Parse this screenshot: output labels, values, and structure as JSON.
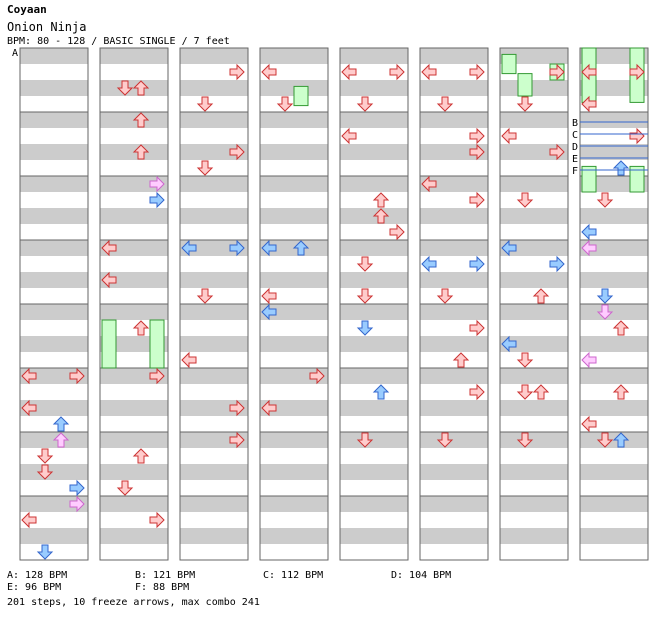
{
  "header": {
    "author": "Coyaan",
    "song_title": "Onion Ninja",
    "info": "BPM: 80 - 128 / BASIC SINGLE / 7 feet"
  },
  "markers": [
    "A",
    "B",
    "C",
    "D",
    "E",
    "F"
  ],
  "bpm_legend": [
    "A: 128 BPM",
    "B: 121 BPM",
    "C: 112 BPM",
    "D: 104 BPM",
    "E: 96 BPM",
    "F: 88 BPM"
  ],
  "summary": "201 steps, 10 freeze arrows, max combo 241",
  "colors": {
    "stripe_gray": "#cccccc",
    "stripe_white": "#ffffff",
    "red_arrow": "#ffcccc",
    "red_stroke": "#cc3333",
    "blue_arrow": "#99ccff",
    "blue_stroke": "#3366cc",
    "pink_arrow": "#ffccff",
    "green_arrow": "#66dd66",
    "freeze_fill": "#ccffcc",
    "freeze_stroke": "#339933"
  },
  "chart_data": {
    "type": "step_chart",
    "columns": 8,
    "lanes": [
      "left",
      "down",
      "up",
      "right"
    ],
    "notes": [
      {
        "col": 1,
        "lane": "down",
        "beat": 0.5,
        "c": "red"
      },
      {
        "col": 1,
        "lane": "up",
        "beat": 0.5,
        "c": "red"
      },
      {
        "col": 1,
        "lane": "up",
        "beat": 1.0,
        "c": "red"
      },
      {
        "col": 1,
        "lane": "up",
        "beat": 1.5,
        "c": "red"
      },
      {
        "col": 1,
        "lane": "right",
        "beat": 2.0,
        "c": "pink"
      },
      {
        "col": 1,
        "lane": "right",
        "beat": 2.25,
        "c": "blue"
      },
      {
        "col": 1,
        "lane": "left",
        "beat": 3.0,
        "c": "red"
      },
      {
        "col": 1,
        "lane": "left",
        "beat": 3.5,
        "c": "red"
      },
      {
        "col": 1,
        "lane": "up",
        "beat": 4.25,
        "c": "red"
      },
      {
        "col": 1,
        "lane": "right",
        "beat": 5.0,
        "c": "red"
      },
      {
        "col": 1,
        "lane": "up",
        "beat": 6.25,
        "c": "red"
      },
      {
        "col": 1,
        "lane": "down",
        "beat": 6.75,
        "c": "red"
      },
      {
        "col": 1,
        "lane": "right",
        "beat": 7.25,
        "c": "red"
      },
      {
        "col": 1,
        "lane": "left",
        "beat": 8.25,
        "c": "red"
      },
      {
        "col": 1,
        "lane": "down",
        "beat": 8.75,
        "c": "red"
      },
      {
        "col": 1,
        "lane": "up",
        "beat": 9.25,
        "c": "blue"
      },
      {
        "col": 1,
        "lane": "down",
        "beat": 9.0,
        "c": "red"
      },
      {
        "col": 2,
        "lane": "right",
        "beat": 0.25,
        "c": "red"
      },
      {
        "col": 2,
        "lane": "down",
        "beat": 0.75,
        "c": "red"
      },
      {
        "col": 2,
        "lane": "down",
        "beat": 1.75,
        "c": "red"
      },
      {
        "col": 2,
        "lane": "right",
        "beat": 1.5,
        "c": "red"
      },
      {
        "col": 2,
        "lane": "left",
        "beat": 3.0,
        "c": "blue"
      },
      {
        "col": 2,
        "lane": "right",
        "beat": 3.0,
        "c": "blue"
      },
      {
        "col": 2,
        "lane": "down",
        "beat": 3.75,
        "c": "red"
      },
      {
        "col": 2,
        "lane": "left",
        "beat": 4.75,
        "c": "red"
      },
      {
        "col": 2,
        "lane": "right",
        "beat": 5.5,
        "c": "red"
      },
      {
        "col": 2,
        "lane": "right",
        "beat": 6.0,
        "c": "red"
      },
      {
        "col": 3,
        "lane": "left",
        "beat": 0.25,
        "c": "red"
      },
      {
        "col": 3,
        "lane": "down",
        "beat": 0.75,
        "c": "red"
      },
      {
        "col": 3,
        "lane": "left",
        "beat": 3.0,
        "c": "blue"
      },
      {
        "col": 3,
        "lane": "up",
        "beat": 3.0,
        "c": "blue"
      },
      {
        "col": 3,
        "lane": "left",
        "beat": 3.75,
        "c": "red"
      },
      {
        "col": 3,
        "lane": "left",
        "beat": 4.0,
        "c": "blue"
      },
      {
        "col": 3,
        "lane": "right",
        "beat": 5.0,
        "c": "red"
      },
      {
        "col": 3,
        "lane": "left",
        "beat": 5.5,
        "c": "red"
      },
      {
        "col": 4,
        "lane": "left",
        "beat": 0.25,
        "c": "red"
      },
      {
        "col": 4,
        "lane": "right",
        "beat": 0.25,
        "c": "red"
      },
      {
        "col": 4,
        "lane": "down",
        "beat": 0.75,
        "c": "red"
      },
      {
        "col": 4,
        "lane": "left",
        "beat": 1.25,
        "c": "red"
      },
      {
        "col": 4,
        "lane": "up",
        "beat": 2.25,
        "c": "red"
      },
      {
        "col": 4,
        "lane": "up",
        "beat": 2.5,
        "c": "red"
      },
      {
        "col": 4,
        "lane": "right",
        "beat": 2.75,
        "c": "red"
      },
      {
        "col": 4,
        "lane": "down",
        "beat": 3.25,
        "c": "red"
      },
      {
        "col": 4,
        "lane": "down",
        "beat": 3.75,
        "c": "red"
      },
      {
        "col": 4,
        "lane": "down",
        "beat": 4.25,
        "c": "blue"
      },
      {
        "col": 4,
        "lane": "up",
        "beat": 5.25,
        "c": "blue"
      },
      {
        "col": 4,
        "lane": "down",
        "beat": 6.0,
        "c": "red"
      },
      {
        "col": 5,
        "lane": "left",
        "beat": 0.25,
        "c": "red"
      },
      {
        "col": 5,
        "lane": "right",
        "beat": 0.25,
        "c": "red"
      },
      {
        "col": 5,
        "lane": "down",
        "beat": 0.75,
        "c": "red"
      },
      {
        "col": 5,
        "lane": "right",
        "beat": 1.25,
        "c": "red"
      },
      {
        "col": 5,
        "lane": "right",
        "beat": 1.5,
        "c": "red"
      },
      {
        "col": 5,
        "lane": "left",
        "beat": 2.0,
        "c": "red"
      },
      {
        "col": 5,
        "lane": "right",
        "beat": 2.25,
        "c": "red"
      },
      {
        "col": 5,
        "lane": "left",
        "beat": 3.25,
        "c": "blue"
      },
      {
        "col": 5,
        "lane": "right",
        "beat": 3.25,
        "c": "blue"
      },
      {
        "col": 5,
        "lane": "down",
        "beat": 3.75,
        "c": "red"
      },
      {
        "col": 5,
        "lane": "right",
        "beat": 4.25,
        "c": "red"
      },
      {
        "col": 5,
        "lane": "up",
        "beat": 4.75,
        "c": "red"
      },
      {
        "col": 5,
        "lane": "right",
        "beat": 5.25,
        "c": "red"
      },
      {
        "col": 5,
        "lane": "down",
        "beat": 6.0,
        "c": "red"
      },
      {
        "col": 6,
        "lane": "right",
        "beat": 0.25,
        "c": "red"
      },
      {
        "col": 6,
        "lane": "down",
        "beat": 0.75,
        "c": "red"
      },
      {
        "col": 6,
        "lane": "left",
        "beat": 1.25,
        "c": "red"
      },
      {
        "col": 6,
        "lane": "right",
        "beat": 1.5,
        "c": "red"
      },
      {
        "col": 6,
        "lane": "down",
        "beat": 2.25,
        "c": "red"
      },
      {
        "col": 6,
        "lane": "left",
        "beat": 3.0,
        "c": "blue"
      },
      {
        "col": 6,
        "lane": "right",
        "beat": 3.25,
        "c": "blue"
      },
      {
        "col": 6,
        "lane": "up",
        "beat": 3.75,
        "c": "red"
      },
      {
        "col": 6,
        "lane": "left",
        "beat": 4.5,
        "c": "blue"
      },
      {
        "col": 6,
        "lane": "down",
        "beat": 4.75,
        "c": "red"
      },
      {
        "col": 6,
        "lane": "down",
        "beat": 5.25,
        "c": "red"
      },
      {
        "col": 6,
        "lane": "up",
        "beat": 5.25,
        "c": "red"
      },
      {
        "col": 6,
        "lane": "down",
        "beat": 6.0,
        "c": "red"
      },
      {
        "col": 7,
        "lane": "left",
        "beat": 0.25,
        "c": "red"
      },
      {
        "col": 7,
        "lane": "right",
        "beat": 0.25,
        "c": "red"
      },
      {
        "col": 7,
        "lane": "left",
        "beat": 0.75,
        "c": "red"
      },
      {
        "col": 7,
        "lane": "right",
        "beat": 1.25,
        "c": "red"
      },
      {
        "col": 7,
        "lane": "up",
        "beat": 1.75,
        "c": "blue"
      },
      {
        "col": 7,
        "lane": "down",
        "beat": 2.25,
        "c": "red"
      },
      {
        "col": 7,
        "lane": "left",
        "beat": 2.75,
        "c": "blue"
      },
      {
        "col": 7,
        "lane": "left",
        "beat": 3.0,
        "c": "pink"
      },
      {
        "col": 7,
        "lane": "down",
        "beat": 3.75,
        "c": "blue"
      },
      {
        "col": 7,
        "lane": "down",
        "beat": 4.0,
        "c": "pink"
      },
      {
        "col": 7,
        "lane": "up",
        "beat": 4.25,
        "c": "red"
      },
      {
        "col": 7,
        "lane": "left",
        "beat": 4.75,
        "c": "pink"
      },
      {
        "col": 7,
        "lane": "up",
        "beat": 5.25,
        "c": "red"
      },
      {
        "col": 7,
        "lane": "left",
        "beat": 5.75,
        "c": "red"
      },
      {
        "col": 7,
        "lane": "down",
        "beat": 6.0,
        "c": "red"
      },
      {
        "col": 7,
        "lane": "up",
        "beat": 6.0,
        "c": "blue"
      },
      {
        "col": 0,
        "lane": "left",
        "beat": 5.0,
        "c": "red"
      },
      {
        "col": 0,
        "lane": "right",
        "beat": 5.0,
        "c": "red"
      },
      {
        "col": 0,
        "lane": "left",
        "beat": 5.5,
        "c": "red"
      },
      {
        "col": 0,
        "lane": "up",
        "beat": 5.75,
        "c": "blue"
      },
      {
        "col": 0,
        "lane": "up",
        "beat": 6.0,
        "c": "pink"
      },
      {
        "col": 0,
        "lane": "down",
        "beat": 6.25,
        "c": "red"
      },
      {
        "col": 0,
        "lane": "down",
        "beat": 6.5,
        "c": "red"
      },
      {
        "col": 0,
        "lane": "right",
        "beat": 6.75,
        "c": "blue"
      },
      {
        "col": 0,
        "lane": "right",
        "beat": 7.0,
        "c": "pink"
      },
      {
        "col": 0,
        "lane": "left",
        "beat": 7.25,
        "c": "red"
      },
      {
        "col": 0,
        "lane": "down",
        "beat": 7.75,
        "c": "blue"
      },
      {
        "col": 0,
        "lane": "down",
        "beat": 8.0,
        "c": "pink"
      }
    ],
    "freezes": [
      {
        "col": 1,
        "lane": "left",
        "from": 4.25,
        "to": 5.0
      },
      {
        "col": 1,
        "lane": "right",
        "from": 4.25,
        "to": 5.0
      },
      {
        "col": 3,
        "lane": "up",
        "from": 0.6,
        "to": 0.9
      },
      {
        "col": 6,
        "lane": "left",
        "from": 0.1,
        "to": 0.4
      },
      {
        "col": 6,
        "lane": "down",
        "from": 0.4,
        "to": 0.75
      },
      {
        "col": 6,
        "lane": "right",
        "from": 0.25,
        "to": 0.5
      },
      {
        "col": 7,
        "lane": "left",
        "from": 0.0,
        "to": 0.85
      },
      {
        "col": 7,
        "lane": "right",
        "from": 0.0,
        "to": 0.85
      },
      {
        "col": 7,
        "lane": "left",
        "from": 1.85,
        "to": 2.25
      },
      {
        "col": 7,
        "lane": "right",
        "from": 1.85,
        "to": 2.25
      }
    ]
  }
}
